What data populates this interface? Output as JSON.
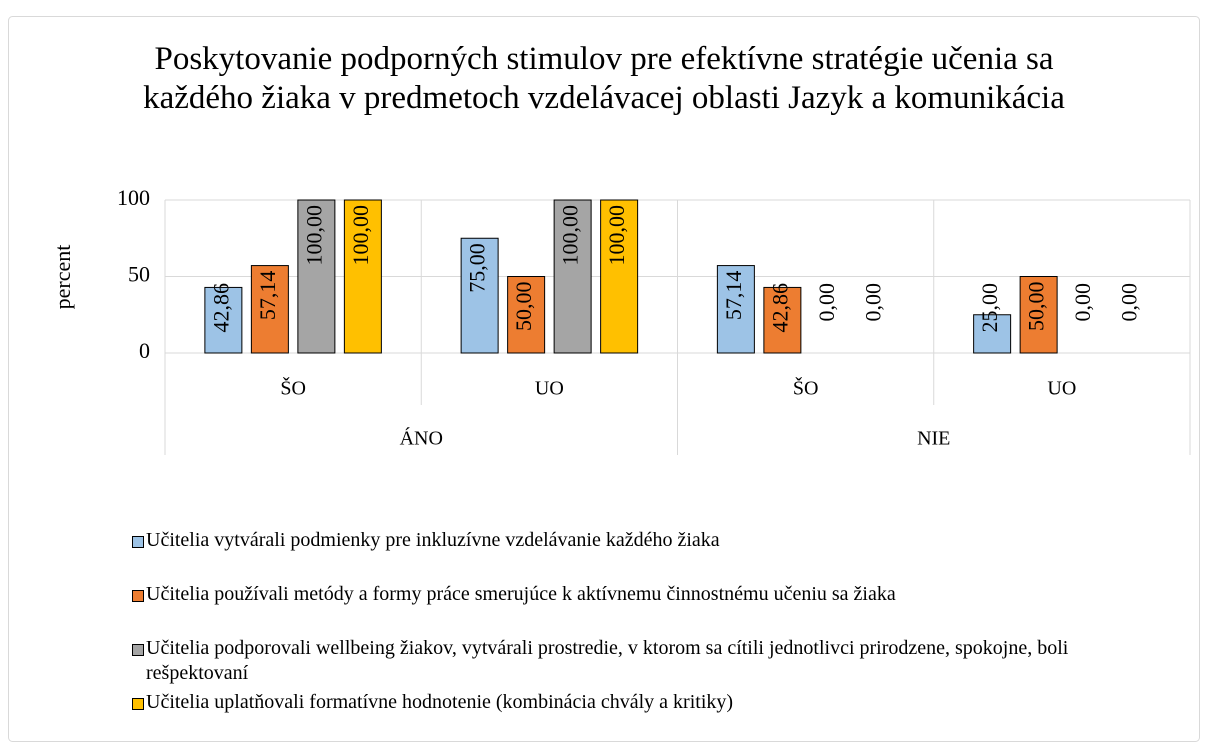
{
  "chart_data": {
    "type": "bar",
    "title": "Poskytovanie podporných stimulov pre efektívne stratégie učenia sa každého žiaka v predmetoch vzdelávacej oblasti Jazyk a komunikácia",
    "ylabel": "percent",
    "categories": [
      "ŠO",
      "UO",
      "ŠO",
      "UO"
    ],
    "groups": [
      "ÁNO",
      "NIE"
    ],
    "ylim": [
      0,
      100
    ],
    "yticks": [
      0,
      50,
      100
    ],
    "grid": true,
    "legend": "bottom",
    "series": [
      {
        "name": "Učitelia vytvárali podmienky pre inkluzívne vzdelávanie každého žiaka",
        "color": "#9dc3e6",
        "values": [
          42.86,
          75,
          57.14,
          25
        ],
        "value_labels": [
          "42,86",
          "75,00",
          "57,14",
          "25,00"
        ]
      },
      {
        "name": "Učitelia používali metódy a formy práce smerujúce k aktívnemu činnostnému učeniu sa žiaka",
        "color": "#ed7d31",
        "values": [
          57.14,
          50,
          42.86,
          50
        ],
        "value_labels": [
          "57,14",
          "50,00",
          "42,86",
          "50,00"
        ]
      },
      {
        "name": "Učitelia podporovali wellbeing žiakov, vytvárali prostredie, v ktorom sa cítili jednotlivci prirodzene, spokojne, boli rešpektovaní",
        "color": "#a5a5a5",
        "values": [
          100,
          100,
          0,
          0
        ],
        "value_labels": [
          "100,00",
          "100,00",
          "0,00",
          "0,00"
        ]
      },
      {
        "name": "Učitelia uplatňovali formatívne hodnotenie (kombinácia chvály a kritiky)",
        "color": "#ffc000",
        "values": [
          100,
          100,
          0,
          0
        ],
        "value_labels": [
          "100,00",
          "100,00",
          "0,00",
          "0,00"
        ]
      }
    ]
  }
}
